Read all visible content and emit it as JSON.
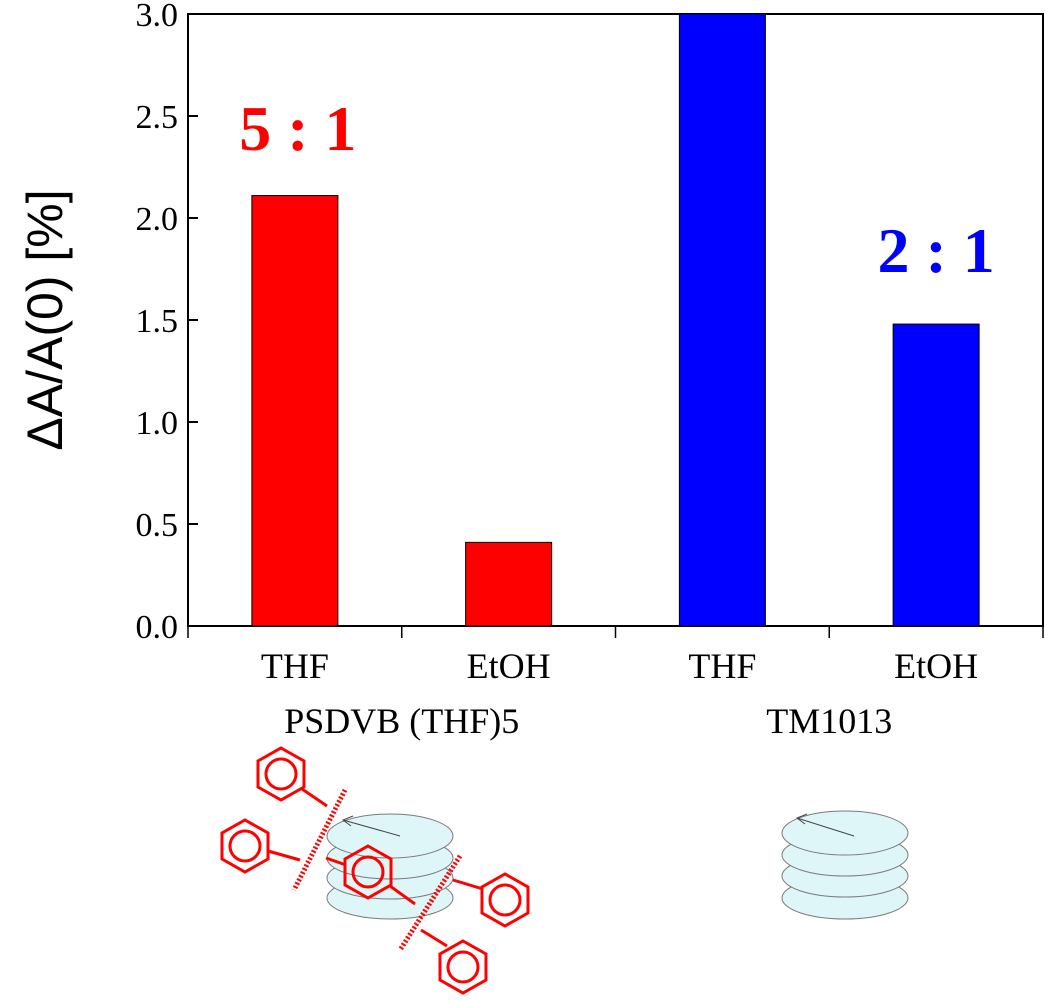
{
  "chart_data": {
    "type": "bar",
    "ylabel": "ΔA/A(0) [%]",
    "ylim": [
      0,
      3.0
    ],
    "yticks": [
      "0.0",
      "0.5",
      "1.0",
      "1.5",
      "2.0",
      "2.5",
      "3.0"
    ],
    "grid": false,
    "groups": [
      {
        "name": "PSDVB (THF)5",
        "color": "#ff0000",
        "ratio_label": "5 : 1",
        "categories": [
          "THF",
          "EtOH"
        ],
        "values": [
          2.11,
          0.41
        ]
      },
      {
        "name": "TM1013",
        "color": "#0000ff",
        "ratio_label": "2 : 1",
        "categories": [
          "THF",
          "EtOH"
        ],
        "values": [
          3.0,
          1.48
        ]
      }
    ]
  },
  "illustrations": {
    "left_icon": "stacked-discs-with-phenyl-rings-icon",
    "right_icon": "stacked-discs-icon",
    "disc_fill": "#dff6f8",
    "ring_color": "#ff0000"
  }
}
